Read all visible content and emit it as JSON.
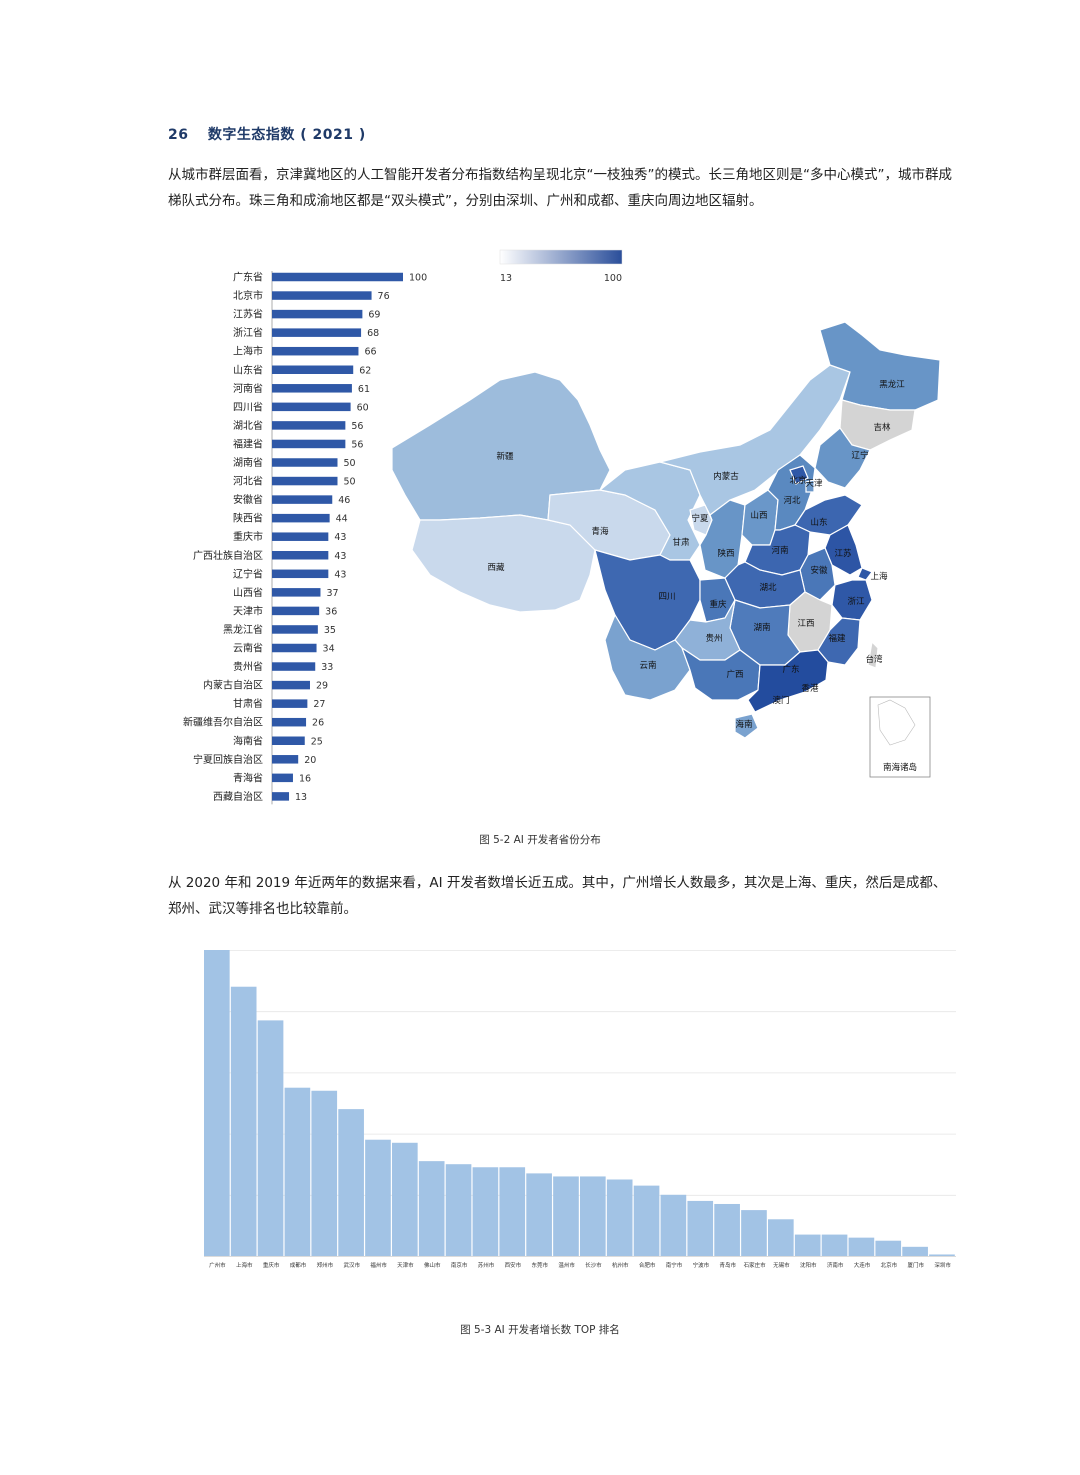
{
  "header": {
    "page_number": "26",
    "title": "数字生态指数 ( 2021 )"
  },
  "paragraph1": "从城市群层面看，京津冀地区的人工智能开发者分布指数结构呈现北京“一枝独秀”的模式。长三角地区则是“多中心模式”，城市群成梯队式分布。珠三角和成渝地区都是“双头模式”，分别由深圳、广州和成都、重庆向周边地区辐射。",
  "paragraph2": "从 2020 年和 2019 年近两年的数据来看，AI 开发者数增长近五成。其中，广州增长人数最多，其次是上海、重庆，然后是成都、郑州、武汉等排名也比较靠前。",
  "caption1": "图 5-2  AI 开发者省份分布",
  "caption2": "图 5-3  AI 开发者增长数 TOP 排名",
  "colors": {
    "bar": "#2f58a7",
    "light": "#e8eef7",
    "dark": "#2a4e9a",
    "bar2": "#a2c3e5",
    "grey": "#d4d4d4"
  },
  "chart_data": [
    {
      "type": "bar",
      "orientation": "horizontal",
      "title": "",
      "categories": [
        "广东省",
        "北京市",
        "江苏省",
        "浙江省",
        "上海市",
        "山东省",
        "河南省",
        "四川省",
        "湖北省",
        "福建省",
        "湖南省",
        "河北省",
        "安徽省",
        "陕西省",
        "重庆市",
        "广西壮族自治区",
        "辽宁省",
        "山西省",
        "天津市",
        "黑龙江省",
        "云南省",
        "贵州省",
        "内蒙古自治区",
        "甘肃省",
        "新疆维吾尔自治区",
        "海南省",
        "宁夏回族自治区",
        "青海省",
        "西藏自治区"
      ],
      "values": [
        100,
        76,
        69,
        68,
        66,
        62,
        61,
        60,
        56,
        56,
        50,
        50,
        46,
        44,
        43,
        43,
        43,
        37,
        36,
        35,
        34,
        33,
        29,
        27,
        26,
        25,
        20,
        16,
        13
      ],
      "xlim": [
        0,
        100
      ]
    },
    {
      "type": "heatmap",
      "subtype": "choropleth-map",
      "color_scale": {
        "min": 13,
        "max": 100,
        "min_label": "13",
        "max_label": "100"
      },
      "region_labels": [
        "黑龙江",
        "吉林",
        "辽宁",
        "内蒙古",
        "北京",
        "天津",
        "河北",
        "山西",
        "山东",
        "宁夏",
        "新疆",
        "青海",
        "甘肃",
        "陕西",
        "河南",
        "江苏",
        "安徽",
        "上海",
        "西藏",
        "四川",
        "重庆",
        "湖北",
        "浙江",
        "江西",
        "湖南",
        "贵州",
        "福建",
        "台湾",
        "云南",
        "广西",
        "广东",
        "香港",
        "澳门",
        "海南",
        "南海诸岛"
      ]
    },
    {
      "type": "bar",
      "title": "",
      "categories": [
        "广州市",
        "上海市",
        "重庆市",
        "成都市",
        "郑州市",
        "武汉市",
        "福州市",
        "天津市",
        "佛山市",
        "南京市",
        "苏州市",
        "西安市",
        "东莞市",
        "温州市",
        "长沙市",
        "杭州市",
        "合肥市",
        "南宁市",
        "宁波市",
        "青岛市",
        "石家庄市",
        "无锡市",
        "沈阳市",
        "济南市",
        "大连市",
        "北京市",
        "厦门市",
        "深圳市"
      ],
      "values": [
        100,
        88,
        77,
        55,
        54,
        48,
        38,
        37,
        31,
        30,
        29,
        29,
        27,
        26,
        26,
        25,
        23,
        20,
        18,
        17,
        15,
        12,
        7,
        7,
        6,
        5,
        3,
        0.5
      ],
      "ylim": [
        0,
        100
      ],
      "grid": true
    }
  ]
}
